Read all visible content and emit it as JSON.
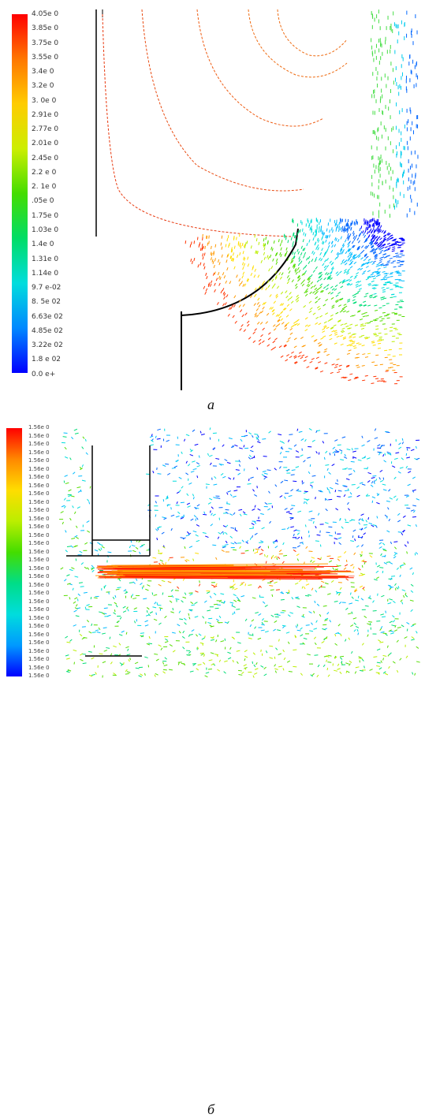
{
  "figure_a": {
    "caption": "а",
    "colorbar": {
      "colors": [
        "#ff0000",
        "#ff7700",
        "#ffcc00",
        "#ccee00",
        "#44dd00",
        "#00dd66",
        "#00dddd",
        "#0088ff",
        "#0000ff"
      ],
      "tick_labels": [
        "4.05e 0",
        "3.85e 0",
        "3.75e 0",
        "3.55e 0",
        "3.4e 0",
        "3.2e 0",
        "3. 0e 0",
        "2.91e 0",
        "2.77e 0",
        "2.01e 0",
        "2.45e 0",
        "2.2 e 0",
        "2. 1e 0",
        ".05e 0",
        "1.75e 0",
        "1.03e 0",
        "1.4e 0",
        "1.31e 0",
        "1.14e 0",
        "9.7 e-02",
        "8. 5e 02",
        "6.63e 02",
        "4.85e 02",
        "3.22e 02",
        "1.8 e 02",
        "0.0 e+"
      ]
    }
  },
  "figure_b": {
    "caption": "б",
    "colorbar": {
      "colors": [
        "#ff0000",
        "#ff8800",
        "#ffdd00",
        "#bbee00",
        "#44dd00",
        "#00dd88",
        "#00dddd",
        "#0099ff",
        "#0000ff"
      ],
      "tick_labels": [
        "1.56e 0",
        "1.56e 0",
        "1.56e 0",
        "1.56e 0",
        "1.56e 0",
        "1.56e 0",
        "1.56e 0",
        "1.56e 0",
        "1.56e 0",
        "1.56e 0",
        "1.56e 0",
        "1.56e 0",
        "1.56e 0",
        "1.56e 0",
        "1.56e 0",
        "1.56e 0",
        "1.56e 0",
        "1.56e 0",
        "1.56e 0",
        "1.56e 0",
        "1.56e 0",
        "1.56e 0",
        "1.56e 0",
        "1.56e 0",
        "1.56e 0",
        "1.56e 0",
        "1.56e 0",
        "1.56e 0",
        "1.56e 0",
        "1.56e 0",
        "1.56e 0"
      ]
    }
  }
}
